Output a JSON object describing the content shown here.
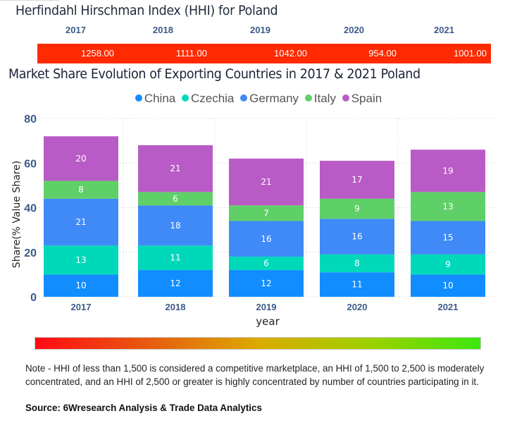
{
  "hhi": {
    "title": "Herfindahl Hirschman Index (HHI) for Poland",
    "years": [
      "2017",
      "2018",
      "2019",
      "2020",
      "2021"
    ],
    "values": [
      "1258.00",
      "1111.00",
      "1042.00",
      "954.00",
      "1001.00"
    ],
    "bar_color": "#ff2a00"
  },
  "chart_data": {
    "type": "bar",
    "stacked": true,
    "title": "Market Share Evolution of Exporting Countries in 2017 & 2021 Poland",
    "xlabel": "year",
    "ylabel": "Share(% Value Share)",
    "categories": [
      "2017",
      "2018",
      "2019",
      "2020",
      "2021"
    ],
    "ylim": [
      0,
      80
    ],
    "yticks": [
      0,
      20,
      40,
      60,
      80
    ],
    "grid": true,
    "legend_position": "top-center",
    "series": [
      {
        "name": "China",
        "color": "#118dff",
        "values": [
          10,
          12,
          12,
          11,
          10
        ]
      },
      {
        "name": "Czechia",
        "color": "#00d9b9",
        "values": [
          13,
          11,
          6,
          8,
          9
        ]
      },
      {
        "name": "Germany",
        "color": "#3f8af7",
        "values": [
          21,
          18,
          16,
          16,
          15
        ]
      },
      {
        "name": "Italy",
        "color": "#5fd068",
        "values": [
          8,
          6,
          7,
          9,
          13
        ]
      },
      {
        "name": "Spain",
        "color": "#b95bc6",
        "values": [
          20,
          21,
          21,
          17,
          19
        ]
      }
    ]
  },
  "scale": {
    "gradient_colors": [
      "#ff0a14",
      "#e85a10",
      "#dbaa00",
      "#9fd000",
      "#3be80e"
    ]
  },
  "footer": {
    "note": "Note - HHI of less than 1,500 is considered a competitive marketplace, an HHI of 1,500 to 2,500 is moderately concentrated, and an HHI of 2,500 or greater is highly concentrated by number of countries participating in it.",
    "source": "Source: 6Wresearch Analysis & Trade Data Analytics"
  }
}
